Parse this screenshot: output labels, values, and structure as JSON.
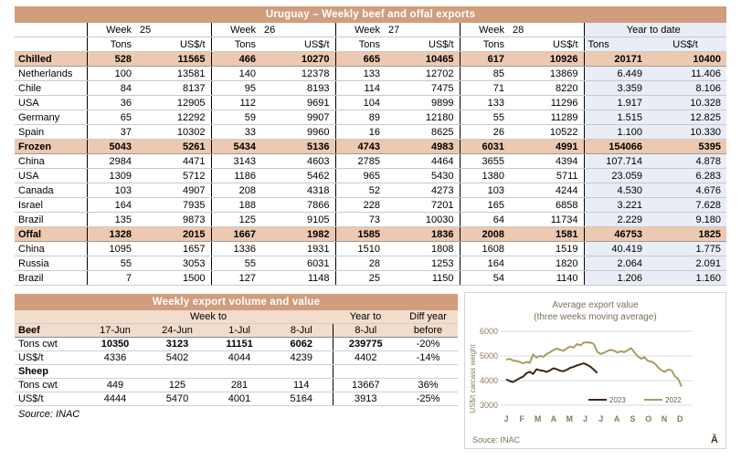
{
  "colors": {
    "accent_bar": "#d09d7d",
    "section_row_bg": "#ecc9b0",
    "ytd_col_bg": "#e9edf6",
    "header_bg": "#f2dccb",
    "line_2023": "#3e2713",
    "line_2022": "#a79d61",
    "chart_text": "#7a6f55"
  },
  "main_table": {
    "title": "Uruguay – Weekly beef and offal exports",
    "week_groups": [
      {
        "label": "Week",
        "num": "25"
      },
      {
        "label": "Week",
        "num": "26"
      },
      {
        "label": "Week",
        "num": "27"
      },
      {
        "label": "Week",
        "num": "28"
      }
    ],
    "ytd_label": "Year to date",
    "tons_label": "Tons",
    "usdt_label": "US$/t",
    "rows": [
      {
        "label": "Chilled",
        "section": true,
        "values": [
          "528",
          "11565",
          "466",
          "10270",
          "665",
          "10465",
          "617",
          "10926",
          "20171",
          "10400"
        ]
      },
      {
        "label": "Netherlands",
        "section": false,
        "values": [
          "100",
          "13581",
          "140",
          "12378",
          "133",
          "12702",
          "85",
          "13869",
          "6.449",
          "11.406"
        ]
      },
      {
        "label": "Chile",
        "section": false,
        "values": [
          "84",
          "8137",
          "95",
          "8193",
          "114",
          "7475",
          "71",
          "8220",
          "3.359",
          "8.106"
        ]
      },
      {
        "label": "USA",
        "section": false,
        "values": [
          "36",
          "12905",
          "112",
          "9691",
          "104",
          "9899",
          "133",
          "11296",
          "1.917",
          "10.328"
        ]
      },
      {
        "label": "Germany",
        "section": false,
        "values": [
          "65",
          "12292",
          "59",
          "9907",
          "89",
          "12180",
          "55",
          "11289",
          "1.515",
          "12.825"
        ]
      },
      {
        "label": "Spain",
        "section": false,
        "values": [
          "37",
          "10302",
          "33",
          "9960",
          "16",
          "8625",
          "26",
          "10522",
          "1.100",
          "10.330"
        ]
      },
      {
        "label": "Frozen",
        "section": true,
        "values": [
          "5043",
          "5261",
          "5434",
          "5136",
          "4743",
          "4983",
          "6031",
          "4991",
          "154066",
          "5395"
        ]
      },
      {
        "label": "China",
        "section": false,
        "values": [
          "2984",
          "4471",
          "3143",
          "4603",
          "2785",
          "4464",
          "3655",
          "4394",
          "107.714",
          "4.878"
        ]
      },
      {
        "label": "USA",
        "section": false,
        "values": [
          "1309",
          "5712",
          "1186",
          "5462",
          "965",
          "5430",
          "1380",
          "5711",
          "23.059",
          "6.283"
        ]
      },
      {
        "label": "Canada",
        "section": false,
        "values": [
          "103",
          "4907",
          "208",
          "4318",
          "52",
          "4273",
          "103",
          "4244",
          "4.530",
          "4.676"
        ]
      },
      {
        "label": "Israel",
        "section": false,
        "values": [
          "164",
          "7935",
          "188",
          "7866",
          "228",
          "7201",
          "165",
          "6858",
          "3.221",
          "7.628"
        ]
      },
      {
        "label": "Brazil",
        "section": false,
        "values": [
          "135",
          "9873",
          "125",
          "9105",
          "73",
          "10030",
          "64",
          "11734",
          "2.229",
          "9.180"
        ]
      },
      {
        "label": "Offal",
        "section": true,
        "values": [
          "1328",
          "2015",
          "1667",
          "1982",
          "1585",
          "1836",
          "2008",
          "1581",
          "46753",
          "1825"
        ]
      },
      {
        "label": "China",
        "section": false,
        "values": [
          "1095",
          "1657",
          "1336",
          "1931",
          "1510",
          "1808",
          "1608",
          "1519",
          "40.419",
          "1.775"
        ]
      },
      {
        "label": "Russia",
        "section": false,
        "values": [
          "55",
          "3053",
          "55",
          "6031",
          "28",
          "1253",
          "164",
          "1820",
          "2.064",
          "2.091"
        ]
      },
      {
        "label": "Brazil",
        "section": false,
        "values": [
          "7",
          "1500",
          "127",
          "1148",
          "25",
          "1150",
          "54",
          "1140",
          "1.206",
          "1.160"
        ]
      }
    ]
  },
  "weekly_table": {
    "title": "Weekly export volume and value",
    "week_to_label": "Week to",
    "year_to_label": "Year to",
    "diff_year_label": "Diff year",
    "beef_label": "Beef",
    "date_headers": [
      "17-Jun",
      "24-Jun",
      "1-Jul",
      "8-Jul",
      "8-Jul",
      "before"
    ],
    "rows": [
      {
        "label": "Tons cwt",
        "section": false,
        "bold_values": true,
        "values": [
          "10350",
          "3123",
          "11151",
          "6062",
          "239775",
          "-20%"
        ]
      },
      {
        "label": "US$/t",
        "section": false,
        "bold_values": false,
        "values": [
          "4336",
          "5402",
          "4044",
          "4239",
          "4402",
          "-14%"
        ]
      },
      {
        "label": "Sheep",
        "section": true,
        "bold_values": false,
        "values": [
          "",
          "",
          "",
          "",
          "",
          ""
        ]
      },
      {
        "label": "Tons cwt",
        "section": false,
        "bold_values": false,
        "values": [
          "449",
          "125",
          "281",
          "114",
          "13667",
          "36%"
        ]
      },
      {
        "label": "US$/t",
        "section": false,
        "bold_values": false,
        "values": [
          "4444",
          "5470",
          "4001",
          "5164",
          "3913",
          "-25%"
        ]
      }
    ],
    "source": "Source: INAC"
  },
  "chart_data": {
    "type": "line",
    "title": "Average export  value",
    "subtitle": "(three weeks moving average)",
    "ylabel": "US$/t carcass weight",
    "ylim": [
      3000,
      6000
    ],
    "yticks": [
      6000,
      5000,
      4000,
      3000
    ],
    "months": [
      "J",
      "F",
      "M",
      "A",
      "M",
      "J",
      "J",
      "A",
      "S",
      "O",
      "N",
      "D"
    ],
    "grid": true,
    "legend_position": "inside-bottom-center",
    "source": "Souce: INAC",
    "logo": "Ā",
    "series": [
      {
        "name": "2023",
        "color": "#3e2713",
        "values": [
          4050,
          3980,
          3940,
          4020,
          4100,
          4160,
          4300,
          4360,
          4270,
          4460,
          4420,
          4400,
          4350,
          4420,
          4500,
          4460,
          4400,
          4380,
          4440,
          4520,
          4560,
          4620,
          4660,
          4700,
          4640,
          4560,
          4440,
          4310
        ]
      },
      {
        "name": "2022",
        "color": "#a79d61",
        "values": [
          4850,
          4880,
          4820,
          4790,
          4760,
          4700,
          4760,
          4720,
          5060,
          4930,
          5010,
          4960,
          5080,
          5150,
          5240,
          5300,
          5250,
          5210,
          5310,
          5380,
          5340,
          5480,
          5430,
          5540,
          5550,
          5540,
          5480,
          5170,
          5080,
          5130,
          5200,
          5250,
          5210,
          5140,
          5190,
          5150,
          5230,
          5320,
          5150,
          4980,
          4890,
          4950,
          4800,
          4770,
          4700,
          4540,
          4420,
          4350,
          4450,
          4420,
          4180,
          4060,
          3760
        ]
      }
    ]
  }
}
